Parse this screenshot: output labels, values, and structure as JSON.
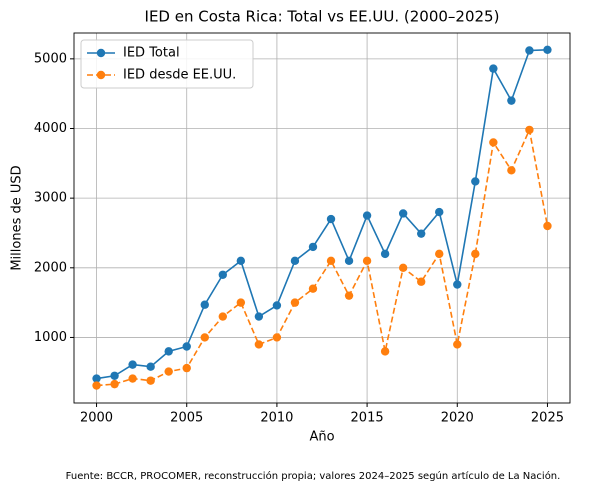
{
  "chart_data": {
    "type": "line",
    "title": "IED en Costa Rica: Total vs EE.UU. (2000–2025)",
    "xlabel": "Año",
    "ylabel": "Millones de USD",
    "footnote": "Fuente: BCCR, PROCOMER, reconstrucción propia; valores 2024–2025 según artículo de La Nación.",
    "x": [
      2000,
      2001,
      2002,
      2003,
      2004,
      2005,
      2006,
      2007,
      2008,
      2009,
      2010,
      2011,
      2012,
      2013,
      2014,
      2015,
      2016,
      2017,
      2018,
      2019,
      2020,
      2021,
      2022,
      2023,
      2024,
      2025
    ],
    "series": [
      {
        "name": "IED Total",
        "color": "#1f77b4",
        "dashed": false,
        "values": [
          410,
          450,
          610,
          580,
          800,
          870,
          1470,
          1900,
          2100,
          1300,
          1460,
          2100,
          2300,
          2700,
          2100,
          2750,
          2200,
          2780,
          2490,
          2800,
          1760,
          3240,
          4860,
          4400,
          5120,
          5130
        ]
      },
      {
        "name": "IED desde EE.UU.",
        "color": "#ff7f0e",
        "dashed": true,
        "values": [
          310,
          330,
          410,
          380,
          510,
          560,
          1000,
          1300,
          1500,
          900,
          1000,
          1500,
          1700,
          2100,
          1600,
          2100,
          800,
          2000,
          1800,
          2200,
          900,
          2200,
          3800,
          3400,
          3980,
          2600
        ]
      }
    ],
    "xlim": [
      1998.75,
      2026.25
    ],
    "ylim": [
      59,
      5371
    ],
    "xticks": [
      2000,
      2005,
      2010,
      2015,
      2020,
      2025
    ],
    "yticks": [
      1000,
      2000,
      3000,
      4000,
      5000
    ],
    "grid": true,
    "legend": "upper-left"
  }
}
